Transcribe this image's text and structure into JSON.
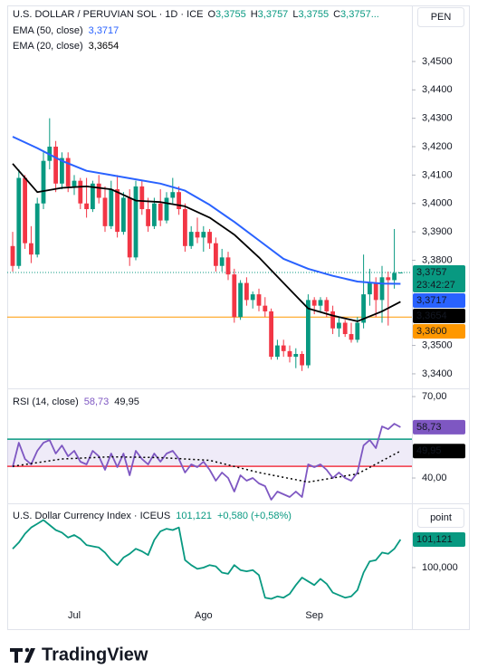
{
  "chart_data": [
    {
      "type": "candlestick",
      "title": "U.S. DOLLAR / PERUVIAN SOL · 1D · ICE",
      "ohlc_legend": [
        {
          "key": "O",
          "value": "3,3755"
        },
        {
          "key": "H",
          "value": "3,3757"
        },
        {
          "key": "L",
          "value": "3,3755"
        },
        {
          "key": "C",
          "value": "3,3757..."
        }
      ],
      "currency": "PEN",
      "categories": [
        null,
        null,
        null,
        null,
        null,
        null,
        null,
        null,
        null,
        null,
        "Jul",
        null,
        null,
        null,
        null,
        null,
        null,
        null,
        null,
        null,
        null,
        null,
        null,
        null,
        null,
        null,
        null,
        null,
        null,
        null,
        null,
        "Ago",
        null,
        null,
        null,
        null,
        null,
        null,
        null,
        null,
        null,
        null,
        null,
        null,
        null,
        null,
        null,
        null,
        null,
        "Sep",
        null,
        null,
        null,
        null,
        null,
        null,
        null,
        null,
        null,
        null,
        null,
        null,
        null,
        null
      ],
      "open": [
        3.385,
        3.378,
        3.409,
        3.386,
        3.382,
        3.4,
        3.415,
        3.42,
        3.407,
        3.416,
        3.406,
        3.408,
        3.4,
        3.398,
        3.407,
        3.402,
        3.392,
        3.405,
        3.39,
        3.402,
        3.381,
        3.406,
        3.398,
        3.392,
        3.4,
        3.394,
        3.402,
        3.404,
        3.398,
        3.385,
        3.39,
        3.388,
        3.39,
        3.386,
        3.378,
        3.381,
        3.375,
        3.36,
        3.372,
        3.366,
        3.368,
        3.364,
        3.362,
        3.346,
        3.35,
        3.348,
        3.346,
        3.347,
        3.343,
        3.366,
        3.364,
        3.366,
        3.362,
        3.356,
        3.358,
        3.354,
        3.352,
        3.358,
        3.368,
        3.372,
        3.366,
        3.374,
        3.373,
        3.3755
      ],
      "high": [
        3.39,
        3.412,
        3.41,
        3.392,
        3.402,
        3.418,
        3.43,
        3.422,
        3.418,
        3.418,
        3.41,
        3.409,
        3.409,
        3.408,
        3.41,
        3.406,
        3.408,
        3.41,
        3.404,
        3.405,
        3.408,
        3.408,
        3.402,
        3.402,
        3.405,
        3.404,
        3.409,
        3.406,
        3.4,
        3.392,
        3.395,
        3.392,
        3.391,
        3.388,
        3.384,
        3.383,
        3.377,
        3.373,
        3.374,
        3.369,
        3.37,
        3.367,
        3.363,
        3.352,
        3.352,
        3.35,
        3.349,
        3.348,
        3.368,
        3.367,
        3.367,
        3.367,
        3.364,
        3.36,
        3.359,
        3.358,
        3.36,
        3.382,
        3.377,
        3.374,
        3.378,
        3.376,
        3.391,
        3.3757
      ],
      "low": [
        3.376,
        3.377,
        3.384,
        3.379,
        3.381,
        3.398,
        3.412,
        3.404,
        3.405,
        3.404,
        3.403,
        3.398,
        3.395,
        3.397,
        3.4,
        3.39,
        3.391,
        3.388,
        3.389,
        3.378,
        3.38,
        3.396,
        3.39,
        3.391,
        3.392,
        3.393,
        3.4,
        3.396,
        3.383,
        3.384,
        3.386,
        3.383,
        3.384,
        3.376,
        3.376,
        3.373,
        3.358,
        3.359,
        3.364,
        3.363,
        3.362,
        3.36,
        3.345,
        3.345,
        3.346,
        3.344,
        3.342,
        3.341,
        3.342,
        3.361,
        3.362,
        3.36,
        3.354,
        3.353,
        3.353,
        3.351,
        3.351,
        3.356,
        3.364,
        3.36,
        3.358,
        3.357,
        3.37,
        3.3755
      ],
      "close": [
        3.378,
        3.409,
        3.386,
        3.382,
        3.4,
        3.415,
        3.42,
        3.407,
        3.416,
        3.406,
        3.408,
        3.4,
        3.398,
        3.407,
        3.402,
        3.392,
        3.405,
        3.39,
        3.402,
        3.381,
        3.406,
        3.398,
        3.392,
        3.4,
        3.394,
        3.402,
        3.404,
        3.398,
        3.385,
        3.39,
        3.388,
        3.39,
        3.386,
        3.378,
        3.381,
        3.375,
        3.36,
        3.372,
        3.366,
        3.368,
        3.364,
        3.362,
        3.346,
        3.35,
        3.348,
        3.346,
        3.347,
        3.343,
        3.366,
        3.364,
        3.366,
        3.362,
        3.356,
        3.358,
        3.354,
        3.352,
        3.358,
        3.368,
        3.372,
        3.366,
        3.374,
        3.373,
        3.3755,
        3.3757
      ],
      "up_color": "#089981",
      "down_color": "#f23645",
      "last_price_label": "3,3757",
      "countdown": "23:42:27",
      "series": [
        {
          "name": "EMA (50, close)",
          "color": "#2962ff",
          "value_label": "3,3717",
          "x": [
            0,
            4,
            8,
            12,
            16,
            20,
            24,
            28,
            32,
            36,
            40,
            44,
            48,
            52,
            56,
            60,
            63
          ],
          "values": [
            3.4235,
            3.4195,
            3.415,
            3.4115,
            3.41,
            3.4085,
            3.407,
            3.4045,
            3.3995,
            3.3935,
            3.387,
            3.3805,
            3.377,
            3.3745,
            3.3725,
            3.3718,
            3.3717
          ]
        },
        {
          "name": "EMA (20, close)",
          "color": "#000000",
          "value_label": "3,3654",
          "x": [
            0,
            4,
            8,
            12,
            16,
            20,
            24,
            28,
            32,
            36,
            40,
            44,
            48,
            52,
            56,
            60,
            63
          ],
          "values": [
            3.414,
            3.404,
            3.4055,
            3.406,
            3.405,
            3.401,
            3.4005,
            3.399,
            3.395,
            3.389,
            3.381,
            3.372,
            3.363,
            3.3605,
            3.3585,
            3.362,
            3.3654
          ]
        }
      ],
      "hline": {
        "value": 3.36,
        "label": "3,3600",
        "color": "#ff9800"
      },
      "ylim": [
        3.3352,
        3.4691
      ],
      "yticks": [
        {
          "value": 3.34,
          "label": "3,3400"
        },
        {
          "value": 3.35,
          "label": "3,3500"
        },
        {
          "value": 3.38,
          "label": "3,3800"
        },
        {
          "value": 3.39,
          "label": "3,3900"
        },
        {
          "value": 3.4,
          "label": "3,4000"
        },
        {
          "value": 3.41,
          "label": "3,4100"
        },
        {
          "value": 3.42,
          "label": "3,4200"
        },
        {
          "value": 3.43,
          "label": "3,4300"
        },
        {
          "value": 3.44,
          "label": "3,4400"
        },
        {
          "value": 3.45,
          "label": "3,4500"
        }
      ]
    },
    {
      "type": "line",
      "title": "RSI (14, close)",
      "series": [
        {
          "color": "#7e57c2",
          "value_label": "58,73",
          "values": [
            44,
            53,
            47,
            45,
            50,
            53,
            54,
            49,
            52,
            48,
            50,
            46,
            45,
            50,
            48,
            43,
            49,
            44,
            49,
            41,
            50,
            47,
            45,
            49,
            46,
            49,
            50,
            47,
            42,
            45,
            44,
            46,
            43,
            39,
            42,
            40,
            35,
            41,
            39,
            40,
            38,
            37,
            32,
            35,
            34,
            33,
            35,
            33,
            45,
            44,
            45,
            43,
            40,
            42,
            40,
            39,
            42,
            52,
            54,
            51,
            59,
            58,
            60,
            58.73
          ]
        },
        {
          "color": "#000000",
          "dashed": true,
          "value_label": "49,95",
          "x": [
            0,
            8,
            16,
            24,
            32,
            40,
            48,
            56,
            63
          ],
          "values": [
            44.3,
            47.0,
            47.8,
            47.5,
            46.5,
            42.0,
            38.5,
            41.5,
            49.95
          ]
        }
      ],
      "bands": [
        {
          "value": 44.3,
          "color": "#f23645"
        },
        {
          "value": 54.3,
          "color": "#089981"
        }
      ],
      "band_fill": "rgba(126,87,194,0.12)",
      "ylim": [
        31,
        72.7
      ],
      "yticks": [
        {
          "value": 70,
          "label": "70,00"
        },
        {
          "value": 40,
          "label": "40,00"
        }
      ]
    },
    {
      "type": "line",
      "title": "U.S. Dollar Currency Index · ICEUS",
      "change": "+0,580 (+0,58%)",
      "unit": "point",
      "series": [
        {
          "color": "#089981",
          "value_label": "101,121",
          "values": [
            100.75,
            101.0,
            101.35,
            101.6,
            101.75,
            101.9,
            101.7,
            101.5,
            101.4,
            101.2,
            101.3,
            101.15,
            100.9,
            100.85,
            100.8,
            100.6,
            100.3,
            100.1,
            100.4,
            100.55,
            100.75,
            100.65,
            100.5,
            101.1,
            101.45,
            101.55,
            101.5,
            101.6,
            100.3,
            100.1,
            99.95,
            100.0,
            100.1,
            100.05,
            99.8,
            99.75,
            100.1,
            99.9,
            99.85,
            99.9,
            99.7,
            98.8,
            98.75,
            98.85,
            98.8,
            98.95,
            99.3,
            99.6,
            99.45,
            99.3,
            99.55,
            99.35,
            99.0,
            98.9,
            98.8,
            98.85,
            99.1,
            99.8,
            100.25,
            100.3,
            100.6,
            100.55,
            100.75,
            101.121
          ]
        }
      ],
      "ylim": [
        97.54,
        102.53
      ],
      "yticks": [
        {
          "value": 100,
          "label": "100,000"
        }
      ]
    }
  ],
  "brand": "TradingView"
}
